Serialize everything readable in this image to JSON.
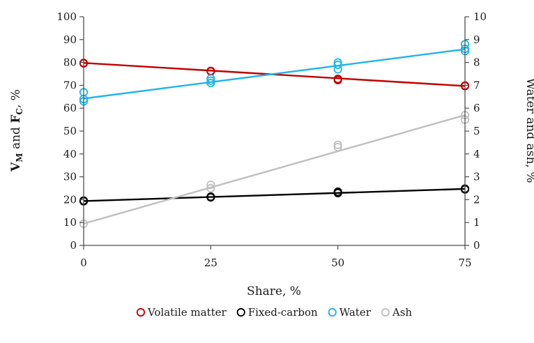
{
  "chart_data": {
    "type": "scatter",
    "xlabel": "Share, %",
    "ylabel_main": "V",
    "ylabel_sub1": "M",
    "ylabel_mid": " and ",
    "ylabel_main2": "F",
    "ylabel_sub2": "C",
    "ylabel_end": ", %",
    "y2label": "Water and ash, %",
    "x_ticks": [
      0,
      25,
      50,
      75
    ],
    "y_ticks": [
      0,
      10,
      20,
      30,
      40,
      50,
      60,
      70,
      80,
      90,
      100
    ],
    "y2_ticks": [
      0,
      1,
      2,
      3,
      4,
      5,
      6,
      7,
      8,
      9,
      10
    ],
    "xlim": [
      0,
      75
    ],
    "ylim": [
      0,
      100
    ],
    "y2lim": [
      0,
      10
    ],
    "legend_position": "bottom",
    "series": [
      {
        "name": "Volatile matter",
        "axis": "left",
        "color": "#c00000",
        "points": [
          [
            0,
            79.8
          ],
          [
            0,
            79.6
          ],
          [
            25,
            76.3
          ],
          [
            25,
            76.1
          ],
          [
            50,
            72.8
          ],
          [
            50,
            72.3
          ],
          [
            75,
            69.9
          ],
          [
            75,
            69.7
          ]
        ],
        "trend": [
          [
            0,
            79.8
          ],
          [
            75,
            69.7
          ]
        ]
      },
      {
        "name": "Fixed-carbon",
        "axis": "left",
        "color": "#000000",
        "points": [
          [
            0,
            19.6
          ],
          [
            0,
            19.3
          ],
          [
            25,
            21.3
          ],
          [
            25,
            21.0
          ],
          [
            50,
            23.5
          ],
          [
            50,
            22.9
          ],
          [
            75,
            24.8
          ],
          [
            75,
            24.5
          ]
        ],
        "trend": [
          [
            0,
            19.4
          ],
          [
            75,
            24.7
          ]
        ]
      },
      {
        "name": "Water",
        "axis": "right",
        "color": "#1fb4e8",
        "points": [
          [
            0,
            6.7
          ],
          [
            0,
            6.4
          ],
          [
            0,
            6.3
          ],
          [
            25,
            7.3
          ],
          [
            25,
            7.1
          ],
          [
            25,
            7.2
          ],
          [
            50,
            8.0
          ],
          [
            50,
            7.7
          ],
          [
            50,
            7.9
          ],
          [
            75,
            8.8
          ],
          [
            75,
            8.6
          ],
          [
            75,
            8.5
          ]
        ],
        "trend": [
          [
            0,
            6.42
          ],
          [
            75,
            8.58
          ]
        ]
      },
      {
        "name": "Ash",
        "axis": "right",
        "color": "#bfbfbf",
        "points": [
          [
            0,
            0.95
          ],
          [
            25,
            2.5
          ],
          [
            25,
            2.65
          ],
          [
            50,
            4.3
          ],
          [
            50,
            4.4
          ],
          [
            75,
            5.5
          ],
          [
            75,
            5.7
          ]
        ],
        "trend": [
          [
            0,
            0.95
          ],
          [
            75,
            5.7
          ]
        ]
      }
    ]
  }
}
